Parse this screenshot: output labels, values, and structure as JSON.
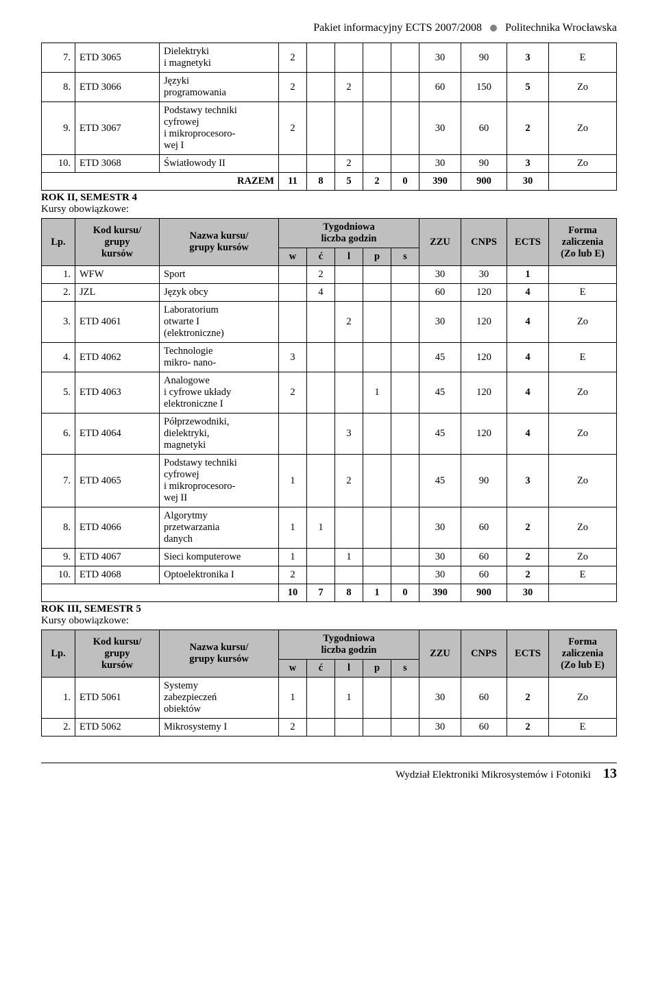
{
  "header": {
    "left": "Pakiet informacyjny ECTS 2007/2008",
    "right": "Politechnika Wrocławska"
  },
  "sections": {
    "rok2sem4": "ROK II, SEMESTR 4",
    "rok3sem5": "ROK III, SEMESTR 5",
    "kursy": "Kursy obowiązkowe:"
  },
  "tableHead": {
    "lp": "Lp.",
    "kod": "Kod kursu/\ngrupy\nkursów",
    "nazwa": "Nazwa kursu/\ngrupy kursów",
    "tyg": "Tygodniowa\nliczba godzin",
    "w": "w",
    "c": "ć",
    "l": "l",
    "p": "p",
    "s": "s",
    "zzu": "ZZU",
    "cnps": "CNPS",
    "ects": "ECTS",
    "forma": "Forma\nzaliczenia\n(Zo lub E)"
  },
  "topRows": [
    {
      "lp": "7.",
      "kod": "ETD 3065",
      "nazwa": "Dielektryki\ni magnetyki",
      "w": "2",
      "c": "",
      "l": "",
      "p": "",
      "s": "",
      "zzu": "30",
      "cnps": "90",
      "ects": "3",
      "f": "E",
      "ectsBold": true
    },
    {
      "lp": "8.",
      "kod": "ETD 3066",
      "nazwa": "Języki\nprogramowania",
      "w": "2",
      "c": "",
      "l": "2",
      "p": "",
      "s": "",
      "zzu": "60",
      "cnps": "150",
      "ects": "5",
      "f": "Zo",
      "ectsBold": true
    },
    {
      "lp": "9.",
      "kod": "ETD 3067",
      "nazwa": "Podstawy techniki\ncyfrowej\ni mikroprocesoro-\nwej I",
      "w": "2",
      "c": "",
      "l": "",
      "p": "",
      "s": "",
      "zzu": "30",
      "cnps": "60",
      "ects": "2",
      "f": "Zo",
      "ectsBold": true
    },
    {
      "lp": "10.",
      "kod": "ETD 3068",
      "nazwa": "Światłowody II",
      "w": "",
      "c": "",
      "l": "2",
      "p": "",
      "s": "",
      "zzu": "30",
      "cnps": "90",
      "ects": "3",
      "f": "Zo",
      "ectsBold": true
    }
  ],
  "razem1": {
    "label": "RAZEM",
    "w": "11",
    "c": "8",
    "l": "5",
    "p": "2",
    "s": "0",
    "zzu": "390",
    "cnps": "900",
    "ects": "30",
    "f": ""
  },
  "midRows": [
    {
      "lp": "1.",
      "kod": "WFW",
      "nazwa": "Sport",
      "w": "",
      "c": "2",
      "l": "",
      "p": "",
      "s": "",
      "zzu": "30",
      "cnps": "30",
      "ects": "1",
      "f": "",
      "ectsBold": true
    },
    {
      "lp": "2.",
      "kod": "JZL",
      "nazwa": "Język obcy",
      "w": "",
      "c": "4",
      "l": "",
      "p": "",
      "s": "",
      "zzu": "60",
      "cnps": "120",
      "ects": "4",
      "f": "E",
      "ectsBold": true
    },
    {
      "lp": "3.",
      "kod": "ETD 4061",
      "nazwa": "Laboratorium\notwarte I\n(elektroniczne)",
      "w": "",
      "c": "",
      "l": "2",
      "p": "",
      "s": "",
      "zzu": "30",
      "cnps": "120",
      "ects": "4",
      "f": "Zo",
      "ectsBold": true
    },
    {
      "lp": "4.",
      "kod": "ETD 4062",
      "nazwa": "Technologie\nmikro- nano-",
      "w": "3",
      "c": "",
      "l": "",
      "p": "",
      "s": "",
      "zzu": "45",
      "cnps": "120",
      "ects": "4",
      "f": "E",
      "ectsBold": true
    },
    {
      "lp": "5.",
      "kod": "ETD 4063",
      "nazwa": "Analogowe\ni cyfrowe układy\nelektroniczne I",
      "w": "2",
      "c": "",
      "l": "",
      "p": "1",
      "s": "",
      "zzu": "45",
      "cnps": "120",
      "ects": "4",
      "f": "Zo",
      "ectsBold": true
    },
    {
      "lp": "6.",
      "kod": "ETD 4064",
      "nazwa": "Półprzewodniki,\ndielektryki,\nmagnetyki",
      "w": "",
      "c": "",
      "l": "3",
      "p": "",
      "s": "",
      "zzu": "45",
      "cnps": "120",
      "ects": "4",
      "f": "Zo",
      "ectsBold": true
    },
    {
      "lp": "7.",
      "kod": "ETD 4065",
      "nazwa": "Podstawy techniki\ncyfrowej\ni mikroprocesoro-\nwej II",
      "w": "1",
      "c": "",
      "l": "2",
      "p": "",
      "s": "",
      "zzu": "45",
      "cnps": "90",
      "ects": "3",
      "f": "Zo",
      "ectsBold": true
    },
    {
      "lp": "8.",
      "kod": "ETD 4066",
      "nazwa": "Algorytmy\nprzetwarzania\ndanych",
      "w": "1",
      "c": "1",
      "l": "",
      "p": "",
      "s": "",
      "zzu": "30",
      "cnps": "60",
      "ects": "2",
      "f": "Zo",
      "ectsBold": true
    },
    {
      "lp": "9.",
      "kod": "ETD 4067",
      "nazwa": "Sieci komputerowe",
      "w": "1",
      "c": "",
      "l": "1",
      "p": "",
      "s": "",
      "zzu": "30",
      "cnps": "60",
      "ects": "2",
      "f": "Zo",
      "ectsBold": true
    },
    {
      "lp": "10.",
      "kod": "ETD 4068",
      "nazwa": "Optoelektronika I",
      "w": "2",
      "c": "",
      "l": "",
      "p": "",
      "s": "",
      "zzu": "30",
      "cnps": "60",
      "ects": "2",
      "f": "E",
      "ectsBold": true
    }
  ],
  "razem2": {
    "label": "",
    "w": "10",
    "c": "7",
    "l": "8",
    "p": "1",
    "s": "0",
    "zzu": "390",
    "cnps": "900",
    "ects": "30",
    "f": ""
  },
  "botRows": [
    {
      "lp": "1.",
      "kod": "ETD 5061",
      "nazwa": "Systemy\nzabezpieczeń\nobiektów",
      "w": "1",
      "c": "",
      "l": "1",
      "p": "",
      "s": "",
      "zzu": "30",
      "cnps": "60",
      "ects": "2",
      "f": "Zo",
      "ectsBold": true
    },
    {
      "lp": "2.",
      "kod": "ETD 5062",
      "nazwa": "Mikrosystemy I",
      "w": "2",
      "c": "",
      "l": "",
      "p": "",
      "s": "",
      "zzu": "30",
      "cnps": "60",
      "ects": "2",
      "f": "E",
      "ectsBold": true
    }
  ],
  "footer": {
    "dept": "Wydział Elektroniki Mikrosystemów i Fotoniki",
    "page": "13"
  }
}
